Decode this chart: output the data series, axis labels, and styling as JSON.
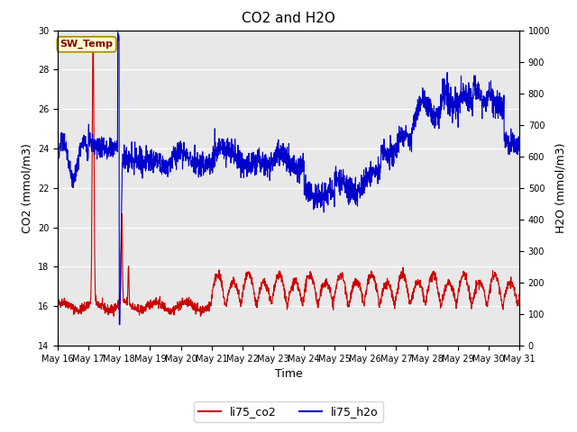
{
  "title": "CO2 and H2O",
  "xlabel": "Time",
  "ylabel_left": "CO2 (mmol/m3)",
  "ylabel_right": "H2O (mmol/m3)",
  "ylim_left": [
    14,
    30
  ],
  "ylim_right": [
    0,
    1000
  ],
  "yticks_left": [
    14,
    16,
    18,
    20,
    22,
    24,
    26,
    28,
    30
  ],
  "yticks_right": [
    0,
    100,
    200,
    300,
    400,
    500,
    600,
    700,
    800,
    900,
    1000
  ],
  "color_co2": "#cc0000",
  "color_h2o": "#0000cc",
  "annotation_text": "SW_Temp",
  "annotation_color": "#800000",
  "annotation_bg": "#ffffcc",
  "fig_bg": "#ffffff",
  "plot_bg": "#e8e8e8",
  "legend_co2": "li75_co2",
  "legend_h2o": "li75_h2o",
  "x_tick_labels": [
    "May 16",
    "May 17",
    "May 18",
    "May 19",
    "May 20",
    "May 21",
    "May 22",
    "May 23",
    "May 24",
    "May 25",
    "May 26",
    "May 27",
    "May 28",
    "May 29",
    "May 30",
    "May 31"
  ],
  "grid_color": "#ffffff",
  "linewidth_co2": 0.8,
  "linewidth_h2o": 0.8,
  "tick_fontsize": 7,
  "label_fontsize": 9,
  "title_fontsize": 11
}
